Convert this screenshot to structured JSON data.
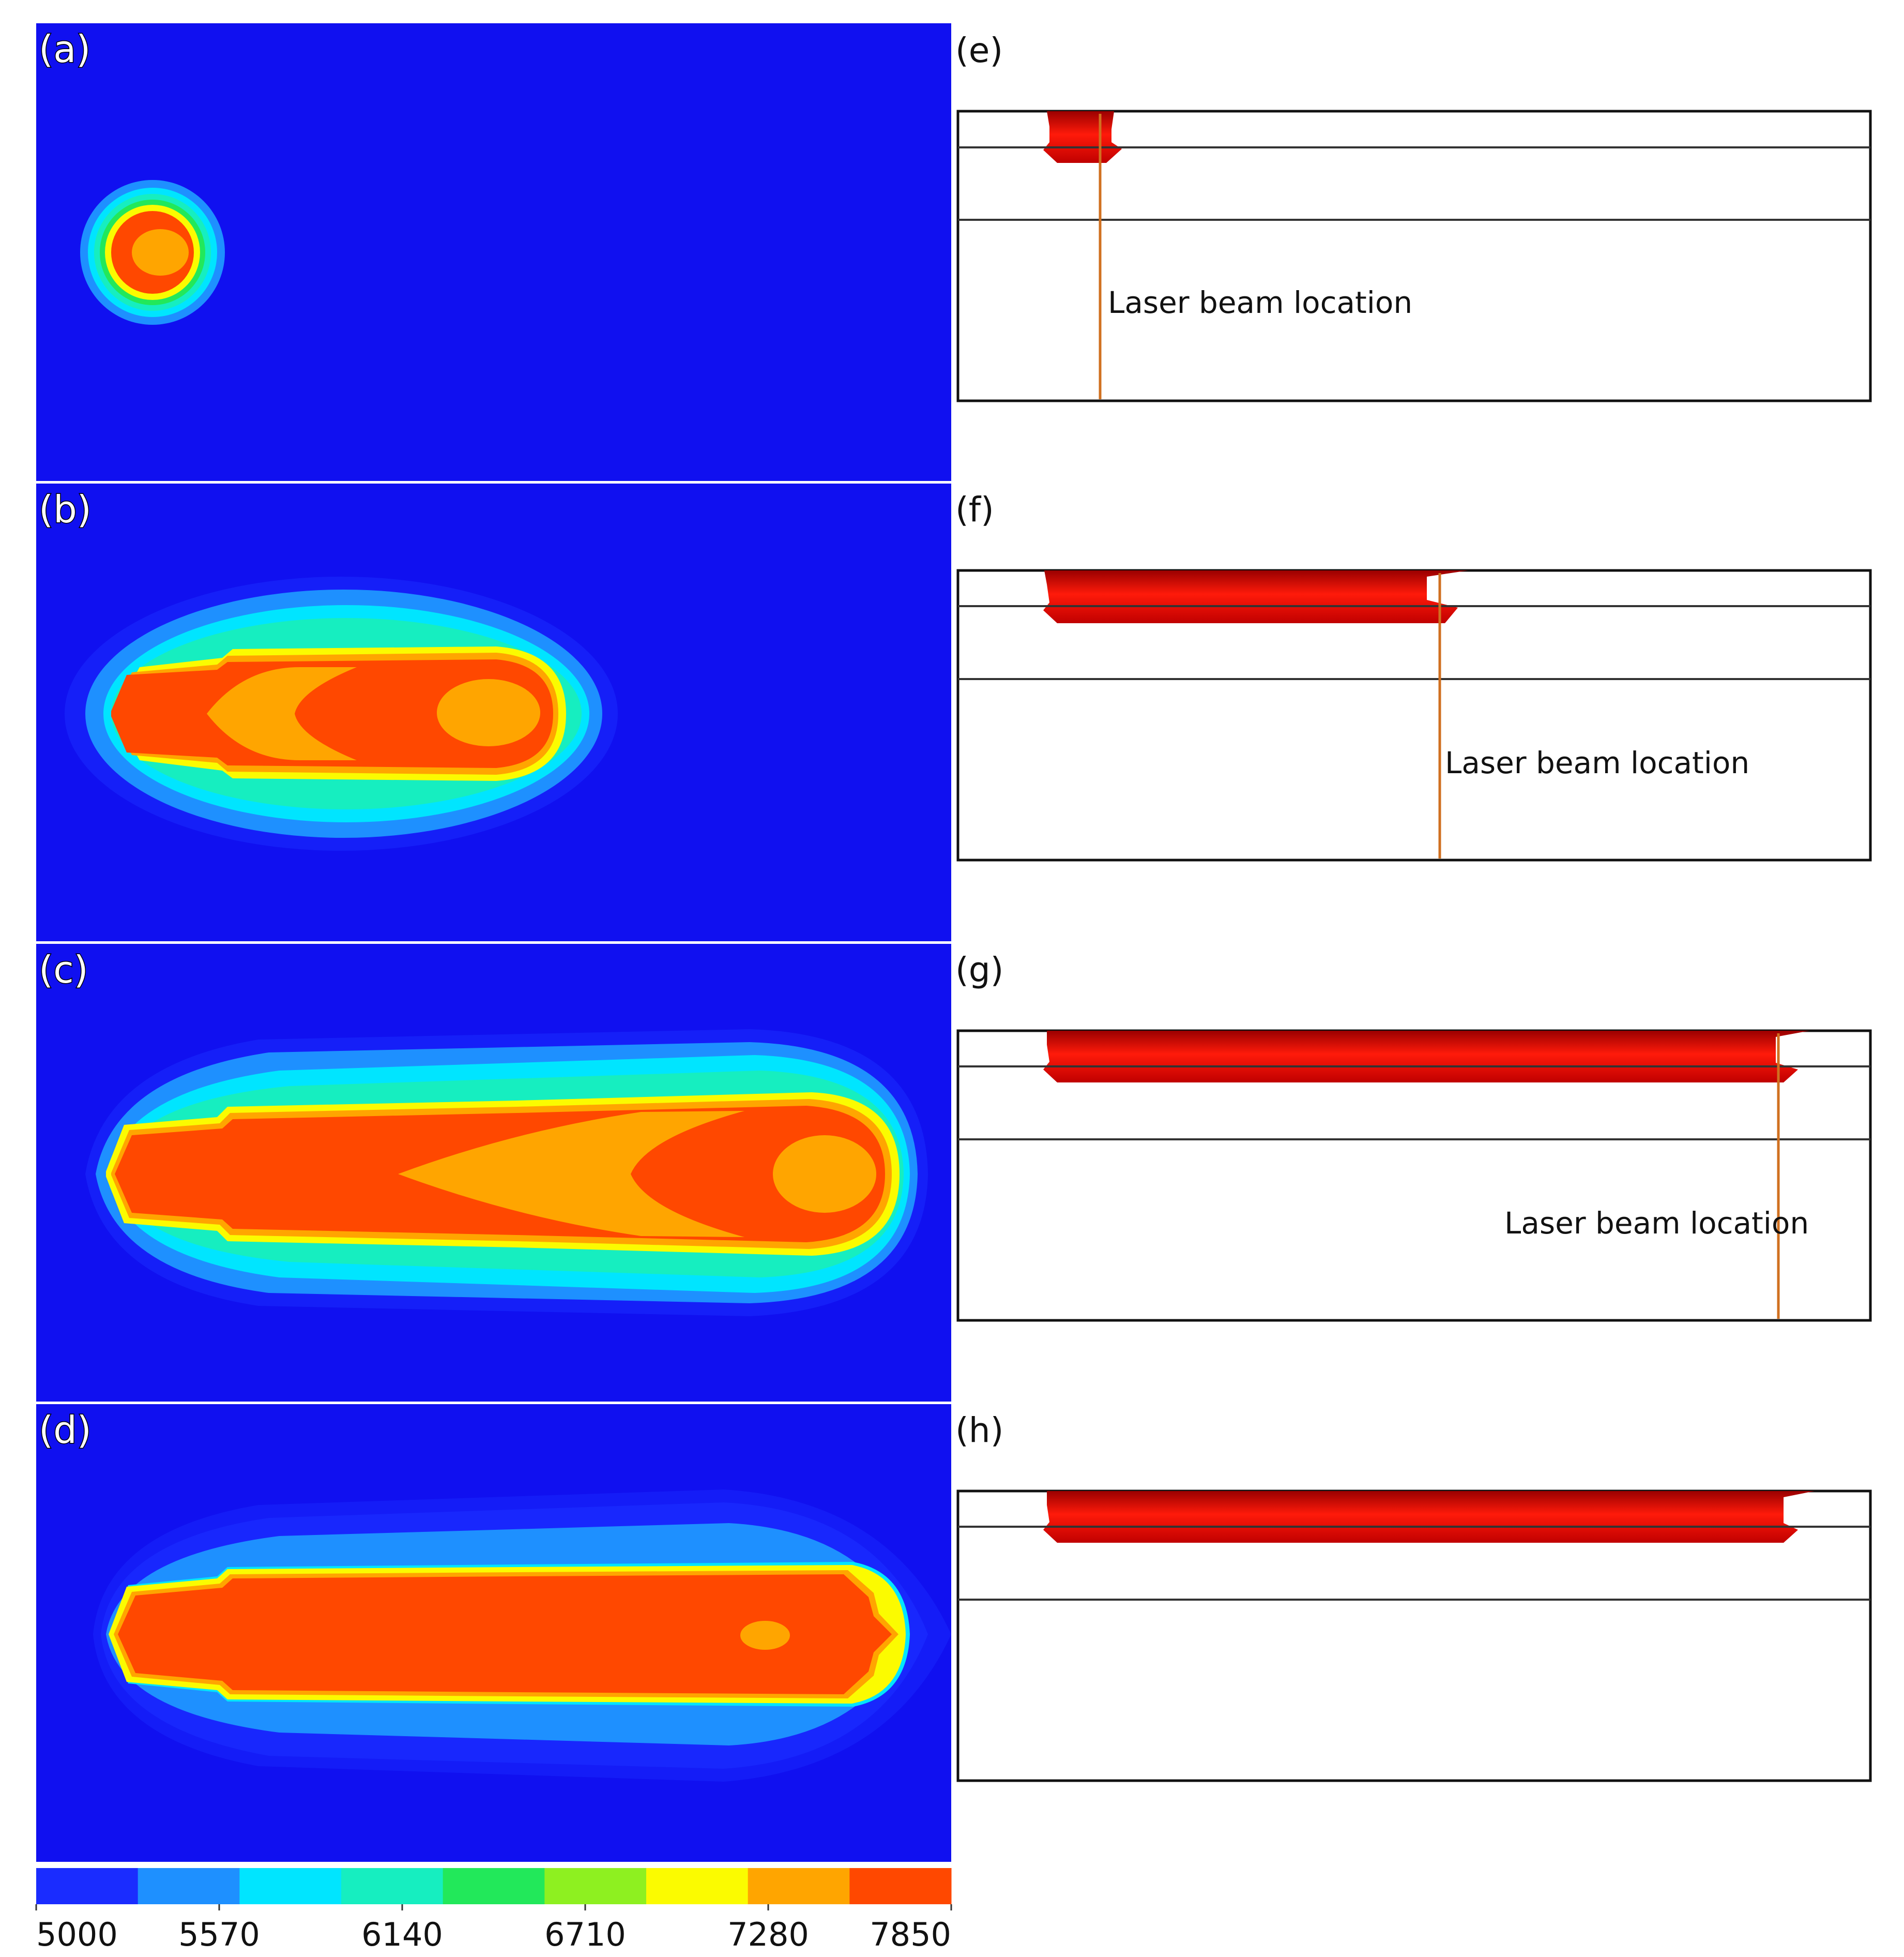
{
  "panels_left": [
    {
      "label": "(a)"
    },
    {
      "label": "(b)"
    },
    {
      "label": "(c)"
    },
    {
      "label": "(d)"
    }
  ],
  "panels_right": [
    {
      "label": "(e)",
      "annotation": "Laser beam location"
    },
    {
      "label": "(f)",
      "annotation": "Laser beam location"
    },
    {
      "label": "(g)",
      "annotation": "Laser beam location"
    },
    {
      "label": "(h)",
      "annotation": ""
    }
  ],
  "colorbar": {
    "ticks": [
      "5000",
      "5570",
      "6140",
      "6710",
      "7280",
      "7850"
    ],
    "colors": [
      "#1a2cff",
      "#1e90ff",
      "#00e5ff",
      "#16eec0",
      "#22e85a",
      "#8ef020",
      "#fbfb00",
      "#ffa500",
      "#ff4800"
    ]
  },
  "colors": {
    "background_field": "#1010f0",
    "pool_red": "#ff4a00",
    "pool_orange": "#ffa500",
    "melt_red": "#e81010",
    "beam_line": "#d07020"
  }
}
